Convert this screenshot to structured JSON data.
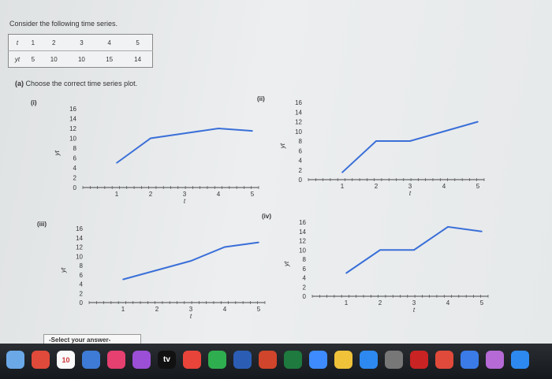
{
  "question": {
    "prompt": "Consider the following time series.",
    "table": {
      "t_label": "t",
      "y_label": "yt",
      "t_values": [
        "1",
        "2",
        "3",
        "4",
        "5"
      ],
      "y_values": [
        "5",
        "10",
        "10",
        "15",
        "14"
      ]
    },
    "part_a_label": "(a)",
    "part_a_text": "Choose the correct time series plot."
  },
  "chart_data": [
    {
      "label": "(i)",
      "type": "line",
      "x": [
        1,
        2,
        3,
        4,
        5
      ],
      "y": [
        5,
        10,
        11,
        12,
        11.5
      ],
      "xlabel": "t",
      "ylabel": "yt",
      "xticks": [
        "1",
        "2",
        "3",
        "4",
        "5"
      ],
      "yticks": [
        "0",
        "2",
        "4",
        "6",
        "8",
        "10",
        "12",
        "14",
        "16"
      ],
      "xlim": [
        0,
        5
      ],
      "ylim": [
        0,
        16
      ],
      "color": "#3a6fd8"
    },
    {
      "label": "(ii)",
      "type": "line",
      "x": [
        1,
        2,
        3,
        4,
        5
      ],
      "y": [
        1.5,
        8,
        8,
        10,
        12
      ],
      "xlabel": "t",
      "ylabel": "yt",
      "xticks": [
        "1",
        "2",
        "3",
        "4",
        "5"
      ],
      "yticks": [
        "0",
        "2",
        "4",
        "6",
        "8",
        "10",
        "12",
        "14",
        "16"
      ],
      "xlim": [
        0,
        5
      ],
      "ylim": [
        0,
        16
      ],
      "color": "#3a6fd8"
    },
    {
      "label": "(iii)",
      "type": "line",
      "x": [
        1,
        2,
        3,
        4,
        5
      ],
      "y": [
        5,
        7,
        9,
        12,
        13
      ],
      "xlabel": "t",
      "ylabel": "yt",
      "xticks": [
        "1",
        "2",
        "3",
        "4",
        "5"
      ],
      "yticks": [
        "0",
        "2",
        "4",
        "6",
        "8",
        "10",
        "12",
        "14",
        "16"
      ],
      "xlim": [
        0,
        5
      ],
      "ylim": [
        0,
        16
      ],
      "color": "#3a6fd8"
    },
    {
      "label": "(iv)",
      "type": "line",
      "x": [
        1,
        2,
        3,
        4,
        5
      ],
      "y": [
        5,
        10,
        10,
        15,
        14
      ],
      "xlabel": "t",
      "ylabel": "yt",
      "xticks": [
        "1",
        "2",
        "3",
        "4",
        "5"
      ],
      "yticks": [
        "0",
        "2",
        "4",
        "6",
        "8",
        "10",
        "12",
        "14",
        "16"
      ],
      "xlim": [
        0,
        5
      ],
      "ylim": [
        0,
        16
      ],
      "color": "#3a6fd8"
    }
  ],
  "answer_select": {
    "value": "-Select your answer-"
  },
  "dock": {
    "icons": [
      "finder-icon",
      "chrome-icon",
      "calendar-icon",
      "files-icon",
      "music-icon",
      "podcasts-icon",
      "tv-icon",
      "news-icon",
      "numbers-icon",
      "word-icon",
      "powerpoint-icon",
      "excel-icon",
      "zoom-icon",
      "notes-icon",
      "appstore-icon",
      "settings-icon",
      "acrobat-icon",
      "chrome-icon",
      "utility-icon",
      "photos-icon",
      "safari-icon"
    ],
    "calendar_day": "10",
    "tv_label": "tv"
  },
  "colors": {
    "line": "#3a6fd8",
    "dock": "#1f2226"
  }
}
